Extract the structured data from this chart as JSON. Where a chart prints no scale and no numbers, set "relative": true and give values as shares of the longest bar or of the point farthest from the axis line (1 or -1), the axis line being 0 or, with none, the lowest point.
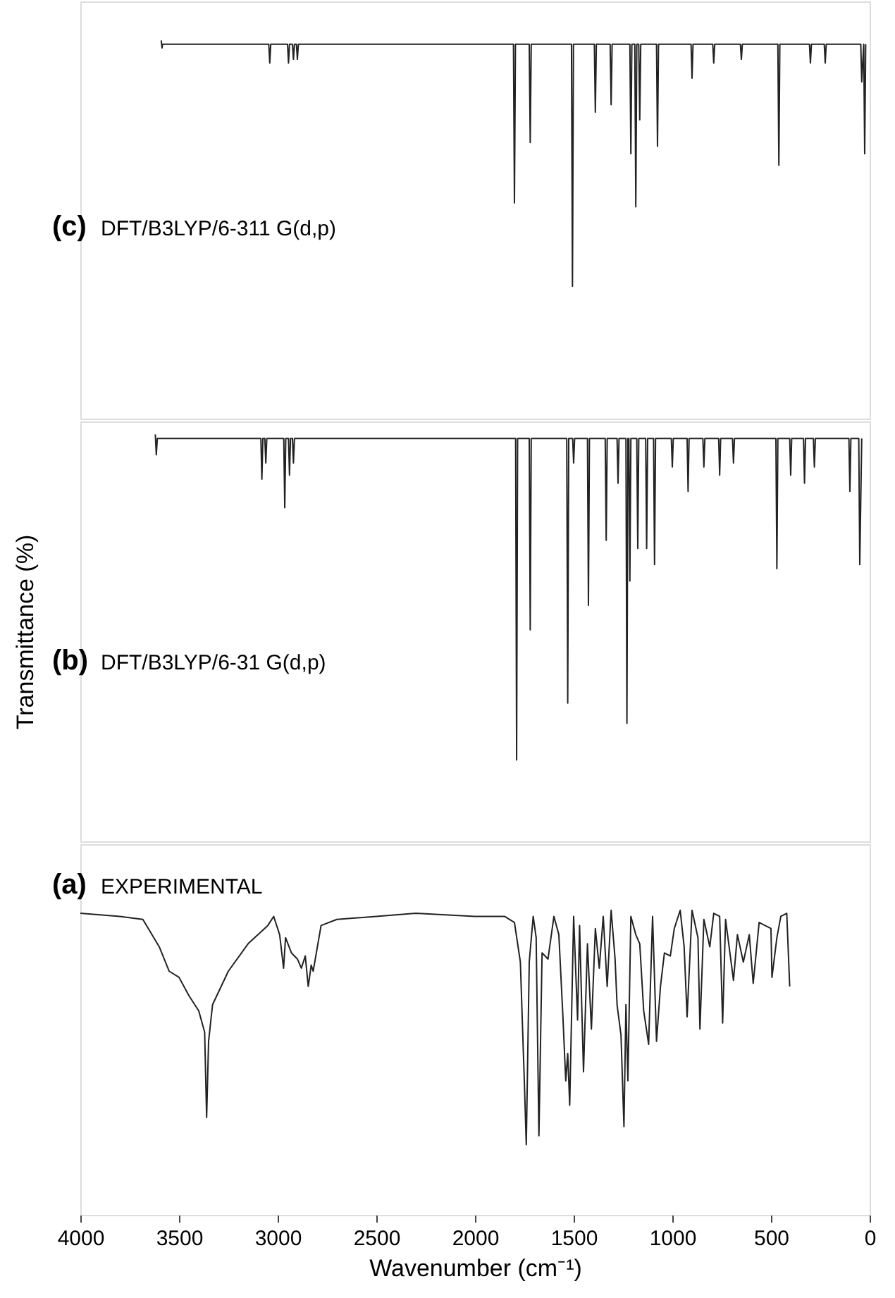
{
  "chart_data": [
    {
      "type": "line",
      "relative": true,
      "annotations": [
        "(c) DFT/B3LYP/6-311 G(d,p)"
      ],
      "xlim": [
        4000,
        0
      ],
      "tick_labels": false,
      "grid": false,
      "line_style": "solid",
      "marker": "none",
      "series": [
        {
          "color": "#222222",
          "x": [
            3590,
            3586,
            3583,
            3300,
            3045,
            3040,
            3035,
            2950,
            2945,
            2940,
            2925,
            2920,
            2915,
            2905,
            2900,
            2895,
            1845,
            1805,
            1800,
            1795,
            1725,
            1720,
            1715,
            1511,
            1506,
            1501,
            1395,
            1390,
            1385,
            1315,
            1310,
            1305,
            1215,
            1210,
            1205,
            1190,
            1185,
            1180,
            1170,
            1165,
            1160,
            1080,
            1075,
            1070,
            905,
            900,
            895,
            795,
            790,
            785,
            655,
            650,
            645,
            465,
            460,
            455,
            305,
            300,
            295,
            230,
            225,
            220,
            45,
            40,
            30,
            25,
            20
          ],
          "values": [
            1,
            0.98,
            0.99,
            0.99,
            0.99,
            0.94,
            0.99,
            0.99,
            0.94,
            0.99,
            0.99,
            0.95,
            0.99,
            0.99,
            0.95,
            0.99,
            0.99,
            0.99,
            0.57,
            0.99,
            0.99,
            0.73,
            0.99,
            0.99,
            0.35,
            0.99,
            0.99,
            0.81,
            0.99,
            0.99,
            0.83,
            0.99,
            0.99,
            0.7,
            0.99,
            0.99,
            0.56,
            0.99,
            0.99,
            0.79,
            0.99,
            0.99,
            0.72,
            0.99,
            0.99,
            0.9,
            0.99,
            0.99,
            0.94,
            0.99,
            0.99,
            0.95,
            0.99,
            0.99,
            0.67,
            0.99,
            0.99,
            0.94,
            0.99,
            0.99,
            0.94,
            0.99,
            0.99,
            0.89,
            0.99,
            0.7,
            0.99
          ]
        }
      ]
    },
    {
      "type": "line",
      "relative": true,
      "ylabel": "Transmittance (%)",
      "annotations": [
        "(b) DFT/B3LYP/6-31 G(d,p)"
      ],
      "xlim": [
        4000,
        0
      ],
      "tick_labels": false,
      "grid": false,
      "line_style": "solid",
      "marker": "none",
      "series": [
        {
          "color": "#222222",
          "x": [
            3620,
            3615,
            3610,
            3400,
            3085,
            3080,
            3075,
            3065,
            3060,
            3055,
            2969,
            2964,
            2959,
            2945,
            2940,
            2935,
            2925,
            2920,
            2915,
            1830,
            1794,
            1789,
            1784,
            1725,
            1720,
            1715,
            1535,
            1530,
            1525,
            1505,
            1500,
            1495,
            1430,
            1425,
            1420,
            1340,
            1335,
            1330,
            1280,
            1275,
            1270,
            1235,
            1230,
            1225,
            1220,
            1215,
            1210,
            1180,
            1175,
            1170,
            1135,
            1130,
            1125,
            1095,
            1090,
            1085,
            1005,
            1000,
            995,
            925,
            920,
            915,
            845,
            840,
            835,
            765,
            760,
            755,
            695,
            690,
            685,
            475,
            470,
            465,
            405,
            400,
            395,
            335,
            330,
            325,
            285,
            280,
            275,
            105,
            100,
            95,
            55,
            50,
            40
          ],
          "values": [
            1,
            0.95,
            0.99,
            0.99,
            0.99,
            0.89,
            0.99,
            0.99,
            0.93,
            0.99,
            0.99,
            0.82,
            0.99,
            0.99,
            0.9,
            0.99,
            0.99,
            0.93,
            0.99,
            0.99,
            0.99,
            0.2,
            0.99,
            0.99,
            0.52,
            0.99,
            0.99,
            0.34,
            0.99,
            0.99,
            0.93,
            0.99,
            0.99,
            0.58,
            0.99,
            0.99,
            0.74,
            0.99,
            0.99,
            0.88,
            0.99,
            0.99,
            0.29,
            0.99,
            0.99,
            0.64,
            0.99,
            0.99,
            0.72,
            0.99,
            0.99,
            0.72,
            0.99,
            0.99,
            0.68,
            0.99,
            0.99,
            0.92,
            0.99,
            0.99,
            0.86,
            0.99,
            0.99,
            0.92,
            0.99,
            0.99,
            0.9,
            0.99,
            0.99,
            0.93,
            0.99,
            0.99,
            0.67,
            0.99,
            0.99,
            0.9,
            0.99,
            0.99,
            0.88,
            0.99,
            0.99,
            0.92,
            0.99,
            0.99,
            0.86,
            0.99,
            0.99,
            0.68,
            0.99
          ]
        }
      ]
    },
    {
      "type": "line",
      "relative": true,
      "xlabel": "Wavenumber (cm⁻¹)",
      "annotations": [
        "(a) EXPERIMENTAL"
      ],
      "xlim": [
        4000,
        0
      ],
      "xticks": [
        4000,
        3500,
        3000,
        2500,
        2000,
        1500,
        1000,
        500,
        0
      ],
      "tick_labels": "x",
      "grid": false,
      "line_style": "solid",
      "marker": "none",
      "series": [
        {
          "color": "#222222",
          "x": [
            4000,
            3800,
            3683,
            3600,
            3550,
            3500,
            3450,
            3400,
            3370,
            3360,
            3350,
            3330,
            3250,
            3150,
            3050,
            3020,
            2990,
            2970,
            2960,
            2930,
            2900,
            2880,
            2860,
            2845,
            2830,
            2820,
            2780,
            2700,
            2500,
            2300,
            2000,
            1850,
            1800,
            1770,
            1750,
            1740,
            1725,
            1705,
            1690,
            1676,
            1660,
            1630,
            1600,
            1575,
            1555,
            1540,
            1530,
            1520,
            1500,
            1480,
            1470,
            1450,
            1430,
            1410,
            1390,
            1370,
            1350,
            1330,
            1310,
            1290,
            1280,
            1260,
            1245,
            1235,
            1225,
            1210,
            1185,
            1165,
            1145,
            1120,
            1100,
            1080,
            1060,
            1040,
            1010,
            990,
            960,
            940,
            925,
            900,
            870,
            860,
            840,
            810,
            790,
            760,
            745,
            730,
            690,
            670,
            640,
            610,
            590,
            560,
            500,
            495,
            470,
            450,
            420,
            405
          ],
          "values": [
            0.99,
            0.98,
            0.97,
            0.88,
            0.8,
            0.78,
            0.72,
            0.67,
            0.6,
            0.32,
            0.57,
            0.69,
            0.8,
            0.89,
            0.95,
            0.98,
            0.92,
            0.81,
            0.91,
            0.86,
            0.84,
            0.81,
            0.85,
            0.75,
            0.82,
            0.8,
            0.95,
            0.97,
            0.98,
            0.99,
            0.98,
            0.98,
            0.96,
            0.83,
            0.44,
            0.23,
            0.83,
            0.98,
            0.91,
            0.26,
            0.86,
            0.84,
            0.98,
            0.92,
            0.66,
            0.44,
            0.53,
            0.36,
            0.98,
            0.64,
            0.95,
            0.47,
            0.89,
            0.61,
            0.94,
            0.81,
            0.98,
            0.75,
            1,
            0.84,
            0.69,
            0.59,
            0.29,
            0.69,
            0.44,
            0.98,
            0.92,
            0.89,
            0.67,
            0.56,
            0.98,
            0.57,
            0.75,
            0.86,
            0.85,
            0.94,
            1,
            0.88,
            0.65,
            1,
            0.91,
            0.61,
            0.97,
            0.88,
            0.99,
            0.98,
            0.63,
            0.97,
            0.77,
            0.92,
            0.83,
            0.92,
            0.76,
            0.96,
            0.94,
            0.78,
            0.91,
            0.98,
            0.99,
            0.75
          ]
        }
      ]
    }
  ]
}
